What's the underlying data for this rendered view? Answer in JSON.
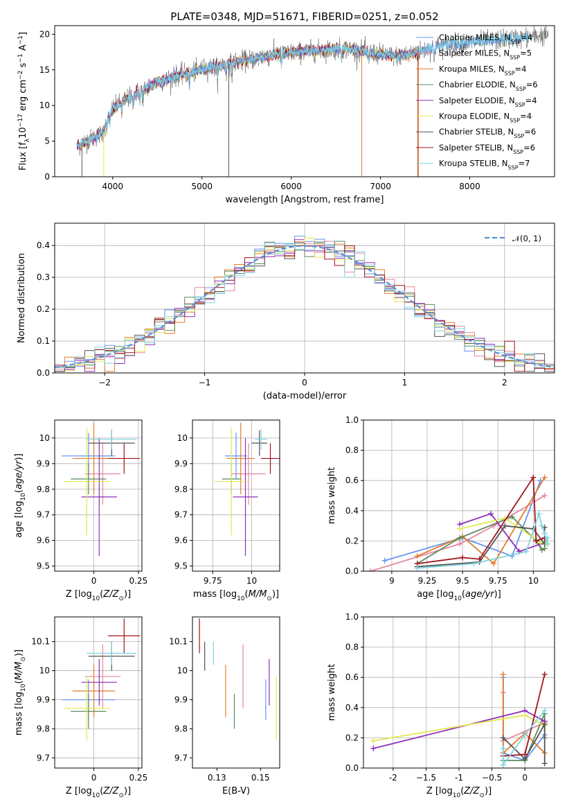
{
  "figure_title": "PLATE=0348, MJD=51671, FIBERID=0251, z=0.052",
  "colors": [
    "#6495ED",
    "#E6879E",
    "#E37B2C",
    "#5B8A5E",
    "#8E2CB8",
    "#E2E851",
    "#535353",
    "#A1131B",
    "#7FD4E0"
  ],
  "chart_data": [
    {
      "id": "spectrum",
      "type": "line",
      "xlabel": "wavelength [Angstrom, rest frame]",
      "ylabel": "Flux [f_λ10^-17 erg cm^-2 s^-1 A^-1]",
      "xlim": [
        3350,
        8950
      ],
      "ylim": [
        0,
        21.2
      ],
      "xticks": [
        4000,
        5000,
        6000,
        7000,
        8000
      ],
      "yticks": [
        0,
        5,
        10,
        15,
        20
      ],
      "grid": false,
      "legend_position": "top-right",
      "series": [
        {
          "name": "Chabrier MILES, N_SSP=4",
          "color": "#6495ED"
        },
        {
          "name": "Salpeter MILES, N_SSP=5",
          "color": "#E6879E"
        },
        {
          "name": "Kroupa MILES, N_SSP=4",
          "color": "#E37B2C"
        },
        {
          "name": "Chabrier ELODIE, N_SSP=6",
          "color": "#5B8A5E"
        },
        {
          "name": "Salpeter ELODIE, N_SSP=4",
          "color": "#8E2CB8"
        },
        {
          "name": "Kroupa ELODIE, N_SSP=4",
          "color": "#E2E851"
        },
        {
          "name": "Chabrier STELIB, N_SSP=6",
          "color": "#535353"
        },
        {
          "name": "Salpeter STELIB, N_SSP=6",
          "color": "#A1131B"
        },
        {
          "name": "Kroupa STELIB, N_SSP=7",
          "color": "#7FD4E0"
        }
      ],
      "continuum": {
        "x": [
          3600,
          3700,
          3800,
          3900,
          3950,
          4000,
          4100,
          4200,
          4300,
          4400,
          4500,
          4600,
          4700,
          4800,
          4900,
          5000,
          5200,
          5400,
          5600,
          5800,
          6000,
          6200,
          6400,
          6600,
          6800,
          7000,
          7200,
          7400,
          7600,
          7800,
          8000,
          8200,
          8400,
          8600,
          8800
        ],
        "y": [
          4.2,
          5.0,
          5.5,
          6.3,
          8.5,
          9.5,
          10.5,
          11.2,
          12.0,
          12.5,
          13.3,
          13.6,
          14.1,
          14.4,
          14.7,
          15.1,
          15.6,
          16.1,
          16.6,
          17.1,
          17.4,
          17.6,
          17.8,
          18.0,
          17.6,
          17.2,
          16.9,
          17.4,
          18.2,
          18.6,
          18.8,
          19.1,
          19.3,
          19.5,
          19.8
        ]
      }
    },
    {
      "id": "residuals",
      "type": "histogram",
      "xlabel": "(data-model)/error",
      "ylabel": "Normed distribution",
      "xlim": [
        -2.5,
        2.5
      ],
      "ylim": [
        0,
        0.47
      ],
      "xticks": [
        -2,
        -1,
        0,
        1,
        2
      ],
      "yticks": [
        0.0,
        0.1,
        0.2,
        0.3,
        0.4
      ],
      "grid": true,
      "legend_position": "top-right",
      "reference_curve": {
        "name": "𝒩(0, 1)",
        "color": "#5A8FD6",
        "style": "dashed"
      }
    },
    {
      "id": "age-vs-Z",
      "type": "errorbar",
      "xlabel": "Z [log10(Z/Z_sun)]",
      "ylabel": "age [log10(age/yr)]",
      "xlim": [
        -0.22,
        0.27
      ],
      "ylim": [
        9.48,
        10.07
      ],
      "xticks": [
        0.0,
        0.25
      ],
      "yticks": [
        9.5,
        9.6,
        9.7,
        9.8,
        9.9,
        10.0
      ],
      "grid": true,
      "points": [
        {
          "x": -0.03,
          "xerr": 0.15,
          "y": 9.93,
          "yerr": 0.09,
          "color": "#6495ED"
        },
        {
          "x": 0.05,
          "xerr": 0.1,
          "y": 9.86,
          "yerr": 0.12,
          "color": "#E6879E"
        },
        {
          "x": 0.0,
          "xerr": 0.12,
          "y": 9.92,
          "yerr": 0.14,
          "color": "#E37B2C"
        },
        {
          "x": -0.03,
          "xerr": 0.1,
          "y": 9.84,
          "yerr": 0.06,
          "color": "#5B8A5E"
        },
        {
          "x": 0.03,
          "xerr": 0.1,
          "y": 9.77,
          "yerr": 0.23,
          "color": "#8E2CB8"
        },
        {
          "x": -0.04,
          "xerr": 0.13,
          "y": 9.83,
          "yerr": 0.21,
          "color": "#E2E851"
        },
        {
          "x": 0.1,
          "xerr": 0.13,
          "y": 9.98,
          "yerr": 0.05,
          "color": "#535353"
        },
        {
          "x": 0.17,
          "xerr": 0.09,
          "y": 9.92,
          "yerr": 0.06,
          "color": "#A1131B"
        },
        {
          "x": 0.1,
          "xerr": 0.14,
          "y": 9.995,
          "yerr": 0.04,
          "color": "#7FD4E0"
        }
      ]
    },
    {
      "id": "age-vs-mass",
      "type": "errorbar",
      "xlabel": "mass [log10(M/M_sun)]",
      "ylabel": "",
      "xlim": [
        9.62,
        10.18
      ],
      "ylim": [
        9.48,
        10.07
      ],
      "xticks": [
        9.75,
        10.0
      ],
      "yticks": [
        9.5,
        9.6,
        9.7,
        9.8,
        9.9,
        10.0
      ],
      "grid": true,
      "points": [
        {
          "x": 9.9,
          "xerr": 0.07,
          "y": 9.93,
          "yerr": 0.09,
          "color": "#6495ED"
        },
        {
          "x": 9.98,
          "xerr": 0.11,
          "y": 9.86,
          "yerr": 0.12,
          "color": "#E6879E"
        },
        {
          "x": 9.93,
          "xerr": 0.09,
          "y": 9.92,
          "yerr": 0.14,
          "color": "#E37B2C"
        },
        {
          "x": 9.87,
          "xerr": 0.06,
          "y": 9.84,
          "yerr": 0.06,
          "color": "#5B8A5E"
        },
        {
          "x": 9.96,
          "xerr": 0.08,
          "y": 9.77,
          "yerr": 0.23,
          "color": "#8E2CB8"
        },
        {
          "x": 9.87,
          "xerr": 0.11,
          "y": 9.83,
          "yerr": 0.21,
          "color": "#E2E851"
        },
        {
          "x": 10.05,
          "xerr": 0.05,
          "y": 9.98,
          "yerr": 0.05,
          "color": "#535353"
        },
        {
          "x": 10.12,
          "xerr": 0.06,
          "y": 9.92,
          "yerr": 0.06,
          "color": "#A1131B"
        },
        {
          "x": 10.06,
          "xerr": 0.04,
          "y": 9.995,
          "yerr": 0.04,
          "color": "#7FD4E0"
        }
      ]
    },
    {
      "id": "weight-vs-age",
      "type": "line",
      "xlabel": "age [log10(age/yr)]",
      "ylabel": "mass weight",
      "xlim": [
        8.8,
        10.15
      ],
      "ylim": [
        0,
        1.0
      ],
      "xticks": [
        9.0,
        9.25,
        9.5,
        9.75,
        10.0
      ],
      "yticks": [
        0.0,
        0.2,
        0.4,
        0.6,
        0.8,
        1.0
      ],
      "grid": true,
      "series": [
        {
          "color": "#6495ED",
          "x": [
            8.95,
            9.5,
            9.85,
            10.05
          ],
          "y": [
            0.07,
            0.22,
            0.1,
            0.6
          ]
        },
        {
          "color": "#E6879E",
          "x": [
            8.85,
            9.48,
            9.72,
            10.08
          ],
          "y": [
            0.0,
            0.18,
            0.3,
            0.5
          ]
        },
        {
          "color": "#E37B2C",
          "x": [
            9.18,
            9.5,
            9.72,
            10.08
          ],
          "y": [
            0.1,
            0.23,
            0.05,
            0.62
          ]
        },
        {
          "color": "#5B8A5E",
          "x": [
            9.18,
            9.48,
            9.85,
            10.02,
            10.06,
            10.08
          ],
          "y": [
            0.05,
            0.22,
            0.36,
            0.2,
            0.14,
            0.15
          ]
        },
        {
          "color": "#8E2CB8",
          "x": [
            9.48,
            9.7,
            9.9,
            10.05
          ],
          "y": [
            0.31,
            0.38,
            0.13,
            0.18
          ]
        },
        {
          "color": "#E2E851",
          "x": [
            9.48,
            9.8,
            10.05,
            10.09
          ],
          "y": [
            0.28,
            0.35,
            0.19,
            0.18
          ]
        },
        {
          "color": "#535353",
          "x": [
            9.18,
            9.62,
            9.8,
            10.0,
            10.08,
            10.08
          ],
          "y": [
            0.03,
            0.06,
            0.3,
            0.28,
            0.18,
            0.29
          ]
        },
        {
          "color": "#A1131B",
          "x": [
            9.18,
            9.5,
            9.62,
            10.0,
            10.02,
            10.08
          ],
          "y": [
            0.05,
            0.09,
            0.08,
            0.62,
            0.2,
            0.22
          ]
        },
        {
          "color": "#7FD4E0",
          "x": [
            9.18,
            9.58,
            9.95,
            10.04,
            10.06,
            10.08,
            10.1,
            10.1
          ],
          "y": [
            0.02,
            0.05,
            0.13,
            0.38,
            0.3,
            0.25,
            0.18,
            0.22
          ]
        }
      ]
    },
    {
      "id": "mass-vs-Z",
      "type": "errorbar",
      "xlabel": "Z [log10(Z/Z_sun)]",
      "ylabel": "mass [log10(M/M_sun)]",
      "xlim": [
        -0.22,
        0.27
      ],
      "ylim": [
        9.665,
        10.185
      ],
      "xticks": [
        0.0,
        0.25
      ],
      "yticks": [
        9.7,
        9.8,
        9.9,
        10.0,
        10.1
      ],
      "grid": true,
      "points": [
        {
          "x": -0.03,
          "xerr": 0.15,
          "y": 9.9,
          "yerr": 0.07,
          "color": "#6495ED"
        },
        {
          "x": 0.05,
          "xerr": 0.1,
          "y": 9.98,
          "yerr": 0.11,
          "color": "#E6879E"
        },
        {
          "x": 0.0,
          "xerr": 0.12,
          "y": 9.93,
          "yerr": 0.09,
          "color": "#E37B2C"
        },
        {
          "x": -0.03,
          "xerr": 0.1,
          "y": 9.86,
          "yerr": 0.06,
          "color": "#5B8A5E"
        },
        {
          "x": 0.03,
          "xerr": 0.1,
          "y": 9.96,
          "yerr": 0.08,
          "color": "#8E2CB8"
        },
        {
          "x": -0.04,
          "xerr": 0.13,
          "y": 9.87,
          "yerr": 0.11,
          "color": "#E2E851"
        },
        {
          "x": 0.1,
          "xerr": 0.13,
          "y": 10.05,
          "yerr": 0.05,
          "color": "#535353"
        },
        {
          "x": 0.17,
          "xerr": 0.09,
          "y": 10.12,
          "yerr": 0.06,
          "color": "#A1131B"
        },
        {
          "x": 0.1,
          "xerr": 0.14,
          "y": 10.06,
          "yerr": 0.04,
          "color": "#7FD4E0"
        }
      ]
    },
    {
      "id": "mass-vs-EBV",
      "type": "errorbar",
      "xlabel": "E(B-V)",
      "ylabel": "",
      "xlim": [
        0.111,
        0.161
      ],
      "ylim": [
        9.665,
        10.185
      ],
      "xticks": [
        0.125,
        0.15
      ],
      "yticks": [
        9.7,
        9.8,
        9.9,
        10.0,
        10.1
      ],
      "grid": false,
      "points": [
        {
          "x": 0.153,
          "y": 9.9,
          "yerr": 0.07,
          "color": "#6495ED"
        },
        {
          "x": 0.14,
          "y": 9.98,
          "yerr": 0.11,
          "color": "#E6879E"
        },
        {
          "x": 0.13,
          "y": 9.93,
          "yerr": 0.09,
          "color": "#E37B2C"
        },
        {
          "x": 0.135,
          "y": 9.86,
          "yerr": 0.06,
          "color": "#5B8A5E"
        },
        {
          "x": 0.155,
          "y": 9.96,
          "yerr": 0.08,
          "color": "#8E2CB8"
        },
        {
          "x": 0.159,
          "y": 9.87,
          "yerr": 0.11,
          "color": "#E2E851"
        },
        {
          "x": 0.118,
          "y": 10.05,
          "yerr": 0.05,
          "color": "#535353"
        },
        {
          "x": 0.115,
          "y": 10.12,
          "yerr": 0.06,
          "color": "#A1131B"
        },
        {
          "x": 0.123,
          "y": 10.06,
          "yerr": 0.04,
          "color": "#7FD4E0"
        }
      ]
    },
    {
      "id": "weight-vs-Z",
      "type": "line",
      "xlabel": "Z [log10(Z/Z_sun)]",
      "ylabel": "mass weight",
      "xlim": [
        -2.45,
        0.45
      ],
      "ylim": [
        0,
        1.0
      ],
      "xticks": [
        -2.0,
        -1.5,
        -1.0,
        -0.5,
        0.0
      ],
      "yticks": [
        0.0,
        0.2,
        0.4,
        0.6,
        0.8,
        1.0
      ],
      "grid": true,
      "series": [
        {
          "color": "#6495ED",
          "x": [
            -0.33,
            -0.33,
            0.0,
            0.3
          ],
          "y": [
            0.6,
            0.1,
            0.05,
            0.22
          ]
        },
        {
          "color": "#E6879E",
          "x": [
            -0.33,
            -0.33,
            0.3
          ],
          "y": [
            0.5,
            0.18,
            0.3
          ]
        },
        {
          "color": "#E37B2C",
          "x": [
            -0.33,
            -0.33,
            0.0,
            0.3
          ],
          "y": [
            0.62,
            0.1,
            0.23,
            0.1
          ]
        },
        {
          "color": "#5B8A5E",
          "x": [
            -0.33,
            0.0,
            0.3,
            0.3
          ],
          "y": [
            0.05,
            0.05,
            0.36,
            0.2
          ]
        },
        {
          "color": "#8E2CB8",
          "x": [
            -2.3,
            0.0,
            0.3
          ],
          "y": [
            0.13,
            0.38,
            0.31
          ]
        },
        {
          "color": "#E2E851",
          "x": [
            -2.3,
            0.0,
            0.3
          ],
          "y": [
            0.18,
            0.35,
            0.28
          ]
        },
        {
          "color": "#535353",
          "x": [
            -0.33,
            0.0,
            0.3,
            0.3
          ],
          "y": [
            0.2,
            0.06,
            0.29,
            0.03
          ]
        },
        {
          "color": "#A1131B",
          "x": [
            -0.33,
            0.0,
            0.3
          ],
          "y": [
            0.08,
            0.09,
            0.62
          ]
        },
        {
          "color": "#7FD4E0",
          "x": [
            -0.33,
            -0.33,
            0.0,
            0.3
          ],
          "y": [
            0.13,
            0.02,
            0.22,
            0.38
          ]
        }
      ]
    }
  ]
}
